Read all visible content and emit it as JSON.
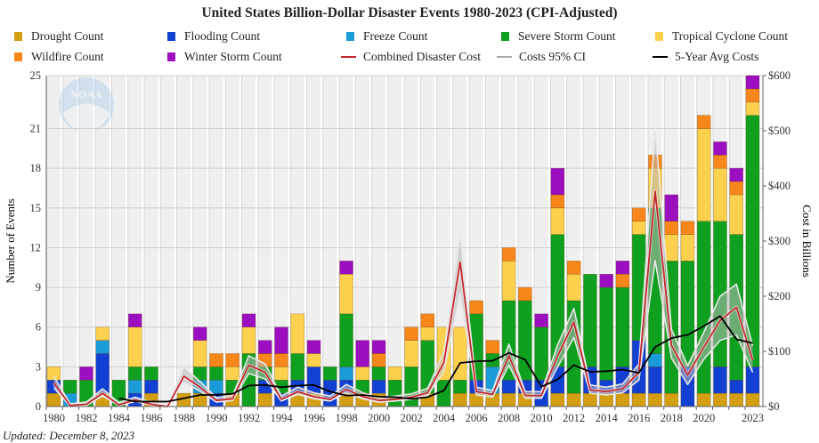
{
  "chart_data": {
    "type": "bar",
    "stacked": true,
    "title": "United States Billion-Dollar Disaster Events 1980-2023 (CPI-Adjusted)",
    "ylabel": "Number of Events",
    "y2label": "Cost in Billions",
    "ylim": [
      0,
      25
    ],
    "y2lim": [
      0,
      600
    ],
    "yticks": [
      "0",
      "3",
      "6",
      "9",
      "12",
      "15",
      "18",
      "21",
      "25"
    ],
    "ytick_values": [
      0,
      3,
      6,
      9,
      12,
      15,
      18,
      21,
      25
    ],
    "y2ticks": [
      "$0",
      "$100",
      "$200",
      "$300",
      "$400",
      "$500",
      "$600"
    ],
    "y2tick_values": [
      0,
      100,
      200,
      300,
      400,
      500,
      600
    ],
    "xtick_labels": [
      "1980",
      "1982",
      "1984",
      "1986",
      "1988",
      "1990",
      "1992",
      "1994",
      "1996",
      "1998",
      "2000",
      "2002",
      "2004",
      "2006",
      "2008",
      "2010",
      "2012",
      "2014",
      "2016",
      "2018",
      "2020",
      "2023"
    ],
    "grid": true,
    "legend": "top",
    "categories": [
      1980,
      1981,
      1982,
      1983,
      1984,
      1985,
      1986,
      1987,
      1988,
      1989,
      1990,
      1991,
      1992,
      1993,
      1994,
      1995,
      1996,
      1997,
      1998,
      1999,
      2000,
      2001,
      2002,
      2003,
      2004,
      2005,
      2006,
      2007,
      2008,
      2009,
      2010,
      2011,
      2012,
      2013,
      2014,
      2015,
      2016,
      2017,
      2018,
      2019,
      2020,
      2021,
      2022,
      2023
    ],
    "series": [
      {
        "name": "Drought Count",
        "color": "#d39e12",
        "values": [
          1,
          0,
          0,
          1,
          0,
          0,
          1,
          0,
          1,
          1,
          0,
          1,
          0,
          1,
          0,
          1,
          1,
          0,
          1,
          1,
          1,
          0,
          0,
          1,
          0,
          1,
          1,
          1,
          1,
          1,
          0,
          1,
          1,
          1,
          1,
          1,
          1,
          1,
          1,
          0,
          1,
          1,
          1,
          1
        ]
      },
      {
        "name": "Flooding Count",
        "color": "#1240d2",
        "values": [
          1,
          0,
          0,
          3,
          0,
          1,
          1,
          0,
          0,
          0,
          1,
          0,
          0,
          1,
          1,
          1,
          2,
          2,
          1,
          0,
          1,
          0,
          0,
          0,
          0,
          0,
          1,
          0,
          1,
          1,
          2,
          2,
          0,
          2,
          1,
          2,
          4,
          2,
          0,
          3,
          0,
          2,
          1,
          2
        ]
      },
      {
        "name": "Freeze Count",
        "color": "#1b9bd7",
        "values": [
          0,
          1,
          0,
          1,
          0,
          1,
          0,
          0,
          0,
          1,
          1,
          0,
          0,
          0,
          0,
          0,
          0,
          0,
          1,
          0,
          0,
          0,
          0,
          0,
          0,
          0,
          0,
          2,
          0,
          0,
          0,
          0,
          0,
          0,
          0,
          0,
          0,
          1,
          0,
          0,
          0,
          0,
          0,
          0
        ]
      },
      {
        "name": "Severe Storm Count",
        "color": "#0ea01e",
        "values": [
          0,
          1,
          2,
          0,
          2,
          1,
          1,
          0,
          0,
          1,
          1,
          1,
          4,
          1,
          1,
          2,
          0,
          1,
          4,
          1,
          1,
          2,
          3,
          4,
          2,
          1,
          5,
          1,
          6,
          6,
          4,
          10,
          7,
          7,
          7,
          6,
          8,
          11,
          10,
          8,
          13,
          11,
          11,
          19
        ]
      },
      {
        "name": "Tropical Cyclone Count",
        "color": "#fdd04e",
        "values": [
          1,
          0,
          0,
          1,
          0,
          3,
          0,
          0,
          0,
          2,
          0,
          1,
          2,
          0,
          1,
          3,
          1,
          0,
          3,
          1,
          0,
          1,
          2,
          1,
          4,
          4,
          0,
          0,
          3,
          0,
          0,
          2,
          2,
          0,
          0,
          0,
          1,
          3,
          2,
          2,
          7,
          4,
          3,
          1
        ]
      },
      {
        "name": "Wildfire Count",
        "color": "#f7861b",
        "values": [
          0,
          0,
          0,
          0,
          0,
          0,
          0,
          0,
          0,
          0,
          1,
          1,
          0,
          1,
          1,
          0,
          0,
          0,
          0,
          0,
          1,
          0,
          1,
          1,
          0,
          0,
          1,
          1,
          1,
          1,
          0,
          1,
          1,
          0,
          0,
          1,
          1,
          1,
          1,
          1,
          1,
          1,
          1,
          1
        ]
      },
      {
        "name": "Winter Storm Count",
        "color": "#9b0fc1",
        "values": [
          0,
          0,
          1,
          0,
          0,
          1,
          0,
          0,
          0,
          1,
          0,
          0,
          1,
          1,
          2,
          0,
          1,
          0,
          1,
          2,
          1,
          0,
          0,
          0,
          0,
          0,
          0,
          0,
          0,
          0,
          1,
          2,
          0,
          0,
          1,
          1,
          0,
          0,
          2,
          0,
          0,
          1,
          1,
          1
        ]
      }
    ],
    "lines": [
      {
        "name": "Combined Disaster Cost",
        "color": "#c3262c",
        "axis": "right",
        "values": [
          43,
          2,
          4,
          24,
          3,
          12,
          4,
          0,
          55,
          35,
          11,
          14,
          75,
          62,
          13,
          27,
          18,
          13,
          31,
          18,
          11,
          13,
          17,
          25,
          80,
          262,
          27,
          22,
          92,
          20,
          20,
          92,
          153,
          30,
          27,
          32,
          62,
          390,
          111,
          57,
          108,
          156,
          180,
          84
        ]
      },
      {
        "name": "Costs 95% CI",
        "color": "#aaaaaa",
        "axis": "right",
        "low": [
          34,
          1,
          2,
          19,
          2,
          9,
          3,
          0,
          44,
          28,
          8,
          11,
          60,
          50,
          10,
          22,
          14,
          10,
          25,
          14,
          8,
          10,
          13,
          20,
          64,
          205,
          21,
          17,
          75,
          15,
          15,
          72,
          125,
          24,
          21,
          25,
          48,
          265,
          88,
          40,
          86,
          120,
          130,
          62
        ],
        "high": [
          55,
          5,
          8,
          32,
          7,
          17,
          8,
          2,
          72,
          45,
          16,
          20,
          92,
          77,
          19,
          35,
          25,
          19,
          40,
          25,
          16,
          19,
          23,
          33,
          99,
          312,
          35,
          29,
          113,
          27,
          27,
          112,
          178,
          39,
          35,
          41,
          77,
          505,
          140,
          74,
          135,
          200,
          222,
          110
        ]
      },
      {
        "name": "5-Year Avg Costs",
        "color": "#000000",
        "axis": "right",
        "values": [
          null,
          null,
          null,
          null,
          15,
          9,
          9,
          9,
          15,
          21,
          21,
          23,
          38,
          39,
          35,
          38,
          39,
          27,
          20,
          21,
          18,
          17,
          14,
          17,
          29,
          79,
          82,
          83,
          97,
          85,
          36,
          49,
          75,
          63,
          64,
          67,
          61,
          108,
          124,
          130,
          146,
          164,
          122,
          115
        ]
      }
    ]
  },
  "logo_text": "NOAA",
  "footer": {
    "updated": "Updated: December 8, 2023"
  }
}
